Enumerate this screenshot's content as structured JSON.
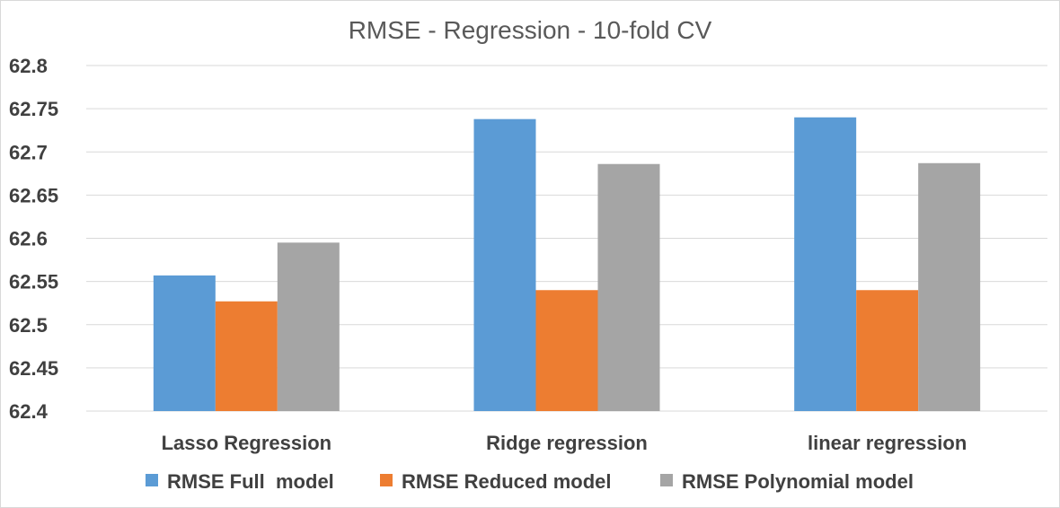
{
  "chart_data": {
    "type": "bar",
    "title": "RMSE - Regression - 10-fold CV",
    "categories": [
      "Lasso Regression",
      "Ridge regression",
      "linear regression"
    ],
    "series": [
      {
        "name": "RMSE Full  model",
        "color": "#5B9BD5",
        "values": [
          62.557,
          62.738,
          62.74
        ]
      },
      {
        "name": "RMSE Reduced model",
        "color": "#ED7D31",
        "values": [
          62.527,
          62.54,
          62.54
        ]
      },
      {
        "name": "RMSE Polynomial model",
        "color": "#A5A5A5",
        "values": [
          62.595,
          62.686,
          62.687
        ]
      }
    ],
    "yticks": [
      "62.4",
      "62.45",
      "62.5",
      "62.55",
      "62.6",
      "62.65",
      "62.7",
      "62.75",
      "62.8"
    ],
    "ylim": [
      62.4,
      62.8
    ],
    "xlabel": "",
    "ylabel": "",
    "grid": true,
    "legend_position": "bottom"
  }
}
